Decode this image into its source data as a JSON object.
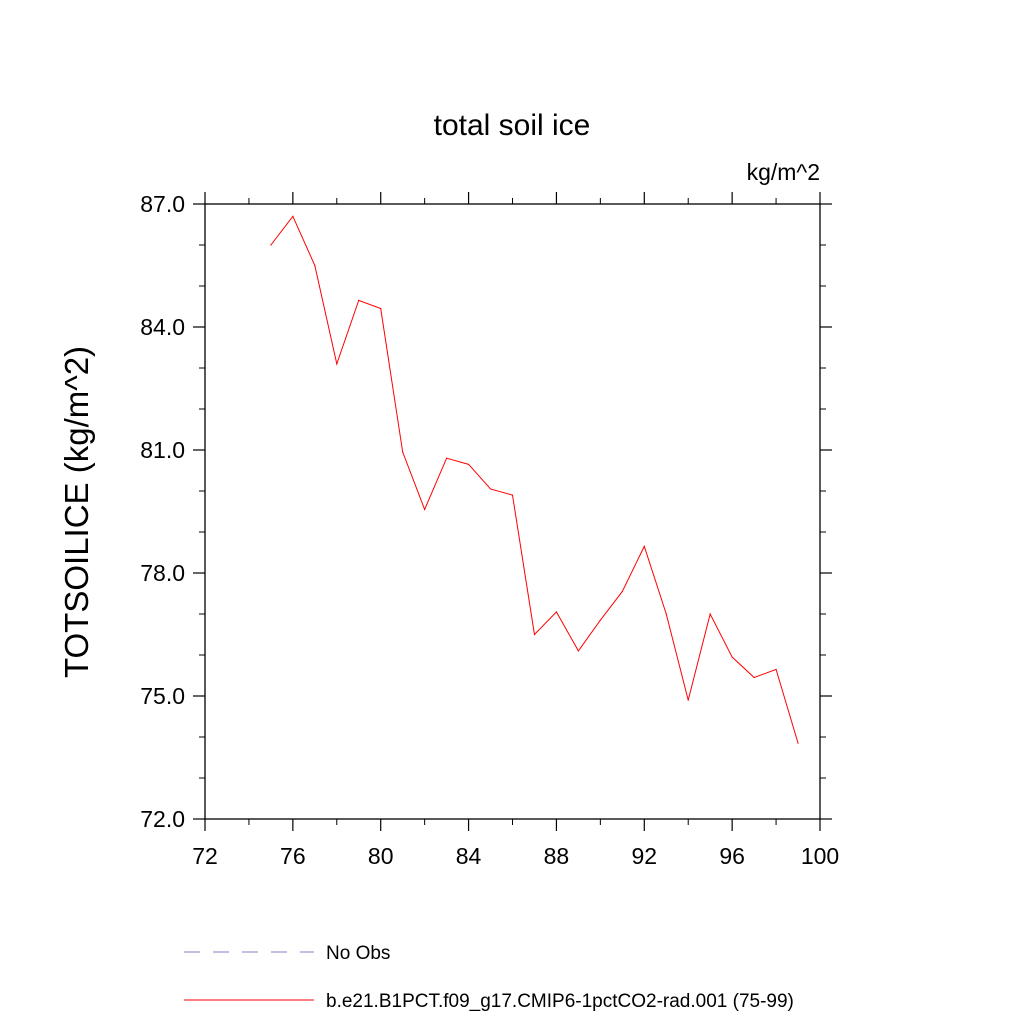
{
  "chart_data": {
    "type": "line",
    "title": "total soil ice",
    "units_label": "kg/m^2",
    "ylabel": "TOTSOILICE  (kg/m^2)",
    "xlabel": "",
    "xlim": [
      72,
      100
    ],
    "ylim": [
      72,
      87
    ],
    "x_ticks": [
      "72",
      "76",
      "80",
      "84",
      "88",
      "92",
      "96",
      "100"
    ],
    "y_ticks": [
      "72.0",
      "75.0",
      "78.0",
      "81.0",
      "84.0",
      "87.0"
    ],
    "grid": false,
    "legend_placement": "bottom",
    "series": [
      {
        "name": "b.e21.B1PCT.f09_g17.CMIP6-1pctCO2-rad.001 (75-99)",
        "color": "#ff0000",
        "style": "solid",
        "x": [
          75,
          76,
          77,
          78,
          79,
          80,
          81,
          82,
          83,
          84,
          85,
          86,
          87,
          88,
          89,
          90,
          91,
          92,
          93,
          94,
          95,
          96,
          97,
          98,
          99
        ],
        "values": [
          86.0,
          86.7,
          85.5,
          83.1,
          84.65,
          84.45,
          80.95,
          79.55,
          80.8,
          80.65,
          80.05,
          79.9,
          76.5,
          77.05,
          76.1,
          76.85,
          77.55,
          78.65,
          77.0,
          74.9,
          77.0,
          75.95,
          75.45,
          75.65,
          73.85
        ]
      }
    ],
    "legend": [
      {
        "label": "No Obs",
        "color": "#8080c0",
        "style": "dashed"
      },
      {
        "label": "b.e21.B1PCT.f09_g17.CMIP6-1pctCO2-rad.001 (75-99)",
        "color": "#ff0000",
        "style": "solid"
      }
    ]
  }
}
